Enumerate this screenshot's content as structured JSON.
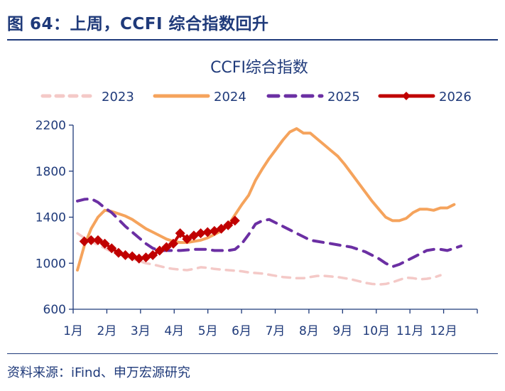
{
  "header": {
    "figure_title": "图 64：上周，CCFI 综合指数回升"
  },
  "footer": {
    "source": "资料来源：iFind、申万宏源研究"
  },
  "chart_data": {
    "type": "line",
    "title": "CCFI综合指数",
    "xlabel": "",
    "ylabel": "",
    "ylim": [
      600,
      2200
    ],
    "yticks": [
      600,
      1000,
      1400,
      1800,
      2200
    ],
    "x_tick_labels": [
      "1月",
      "2月",
      "3月",
      "4月",
      "5月",
      "6月",
      "7月",
      "8月",
      "9月",
      "10月",
      "11月",
      "12月"
    ],
    "x_domain_weeks": [
      0,
      52
    ],
    "legend_position": "top",
    "grid": false,
    "series": [
      {
        "name": "2023",
        "color": "#f4c9c7",
        "style": "dashed-light",
        "points": [
          [
            0,
            1260
          ],
          [
            1,
            1220
          ],
          [
            2,
            1190
          ],
          [
            3,
            1160
          ],
          [
            4,
            1130
          ],
          [
            5,
            1100
          ],
          [
            6,
            1080
          ],
          [
            7,
            1060
          ],
          [
            8,
            1040
          ],
          [
            9,
            1020
          ],
          [
            10,
            1000
          ],
          [
            11,
            990
          ],
          [
            12,
            975
          ],
          [
            13,
            960
          ],
          [
            14,
            950
          ],
          [
            15,
            945
          ],
          [
            16,
            940
          ],
          [
            17,
            950
          ],
          [
            18,
            965
          ],
          [
            19,
            960
          ],
          [
            20,
            950
          ],
          [
            21,
            945
          ],
          [
            22,
            940
          ],
          [
            23,
            935
          ],
          [
            24,
            930
          ],
          [
            25,
            920
          ],
          [
            26,
            915
          ],
          [
            27,
            910
          ],
          [
            28,
            900
          ],
          [
            29,
            890
          ],
          [
            30,
            880
          ],
          [
            31,
            875
          ],
          [
            32,
            870
          ],
          [
            33,
            870
          ],
          [
            34,
            880
          ],
          [
            35,
            890
          ],
          [
            36,
            890
          ],
          [
            37,
            885
          ],
          [
            38,
            880
          ],
          [
            39,
            870
          ],
          [
            40,
            860
          ],
          [
            41,
            845
          ],
          [
            42,
            830
          ],
          [
            43,
            820
          ],
          [
            44,
            815
          ],
          [
            45,
            820
          ],
          [
            46,
            835
          ],
          [
            47,
            855
          ],
          [
            48,
            875
          ],
          [
            49,
            870
          ],
          [
            50,
            860
          ],
          [
            51,
            865
          ],
          [
            52,
            875
          ],
          [
            53,
            895
          ]
        ]
      },
      {
        "name": "2024",
        "color": "#f5a35c",
        "style": "solid",
        "points": [
          [
            0,
            940
          ],
          [
            1,
            1150
          ],
          [
            2,
            1300
          ],
          [
            3,
            1400
          ],
          [
            4,
            1460
          ],
          [
            5,
            1450
          ],
          [
            6,
            1430
          ],
          [
            7,
            1410
          ],
          [
            8,
            1380
          ],
          [
            9,
            1340
          ],
          [
            10,
            1300
          ],
          [
            11,
            1270
          ],
          [
            12,
            1240
          ],
          [
            13,
            1210
          ],
          [
            14,
            1190
          ],
          [
            15,
            1180
          ],
          [
            16,
            1180
          ],
          [
            17,
            1190
          ],
          [
            18,
            1200
          ],
          [
            19,
            1220
          ],
          [
            20,
            1250
          ],
          [
            21,
            1280
          ],
          [
            22,
            1330
          ],
          [
            23,
            1420
          ],
          [
            24,
            1510
          ],
          [
            25,
            1590
          ],
          [
            26,
            1720
          ],
          [
            27,
            1820
          ],
          [
            28,
            1910
          ],
          [
            29,
            1990
          ],
          [
            30,
            2070
          ],
          [
            31,
            2140
          ],
          [
            32,
            2170
          ],
          [
            33,
            2130
          ],
          [
            34,
            2130
          ],
          [
            35,
            2080
          ],
          [
            36,
            2030
          ],
          [
            37,
            1980
          ],
          [
            38,
            1930
          ],
          [
            39,
            1860
          ],
          [
            40,
            1780
          ],
          [
            41,
            1700
          ],
          [
            42,
            1620
          ],
          [
            43,
            1540
          ],
          [
            44,
            1470
          ],
          [
            45,
            1400
          ],
          [
            46,
            1370
          ],
          [
            47,
            1370
          ],
          [
            48,
            1390
          ],
          [
            49,
            1440
          ],
          [
            50,
            1470
          ],
          [
            51,
            1470
          ],
          [
            52,
            1460
          ],
          [
            53,
            1480
          ],
          [
            54,
            1480
          ],
          [
            55,
            1510
          ]
        ]
      },
      {
        "name": "2025",
        "color": "#6b2fa3",
        "style": "dashed-heavy",
        "points": [
          [
            0,
            1540
          ],
          [
            1,
            1555
          ],
          [
            2,
            1560
          ],
          [
            3,
            1530
          ],
          [
            4,
            1480
          ],
          [
            5,
            1440
          ],
          [
            6,
            1380
          ],
          [
            7,
            1320
          ],
          [
            8,
            1270
          ],
          [
            9,
            1220
          ],
          [
            10,
            1170
          ],
          [
            11,
            1130
          ],
          [
            12,
            1110
          ],
          [
            13,
            1110
          ],
          [
            14,
            1110
          ],
          [
            15,
            1110
          ],
          [
            16,
            1115
          ],
          [
            17,
            1120
          ],
          [
            18,
            1120
          ],
          [
            19,
            1120
          ],
          [
            20,
            1110
          ],
          [
            21,
            1110
          ],
          [
            22,
            1110
          ],
          [
            23,
            1120
          ],
          [
            24,
            1170
          ],
          [
            25,
            1250
          ],
          [
            26,
            1340
          ],
          [
            27,
            1370
          ],
          [
            28,
            1380
          ],
          [
            29,
            1350
          ],
          [
            30,
            1320
          ],
          [
            31,
            1290
          ],
          [
            32,
            1260
          ],
          [
            33,
            1230
          ],
          [
            34,
            1200
          ],
          [
            35,
            1190
          ],
          [
            36,
            1180
          ],
          [
            37,
            1170
          ],
          [
            38,
            1160
          ],
          [
            39,
            1150
          ],
          [
            40,
            1140
          ],
          [
            41,
            1120
          ],
          [
            42,
            1100
          ],
          [
            43,
            1070
          ],
          [
            44,
            1040
          ],
          [
            45,
            1000
          ],
          [
            46,
            970
          ],
          [
            47,
            990
          ],
          [
            48,
            1020
          ],
          [
            49,
            1050
          ],
          [
            50,
            1080
          ],
          [
            51,
            1110
          ],
          [
            52,
            1120
          ],
          [
            53,
            1120
          ],
          [
            54,
            1110
          ],
          [
            55,
            1130
          ],
          [
            56,
            1150
          ]
        ]
      },
      {
        "name": "2026",
        "color": "#c00000",
        "style": "solid-diamond",
        "points": [
          [
            1,
            1190
          ],
          [
            2,
            1200
          ],
          [
            3,
            1200
          ],
          [
            4,
            1170
          ],
          [
            5,
            1130
          ],
          [
            6,
            1090
          ],
          [
            7,
            1070
          ],
          [
            8,
            1060
          ],
          [
            9,
            1040
          ],
          [
            10,
            1050
          ],
          [
            11,
            1070
          ],
          [
            12,
            1110
          ],
          [
            13,
            1140
          ],
          [
            14,
            1170
          ],
          [
            15,
            1260
          ],
          [
            16,
            1210
          ],
          [
            17,
            1240
          ],
          [
            18,
            1260
          ],
          [
            19,
            1270
          ],
          [
            20,
            1280
          ],
          [
            21,
            1300
          ],
          [
            22,
            1330
          ],
          [
            23,
            1370
          ]
        ]
      }
    ]
  }
}
